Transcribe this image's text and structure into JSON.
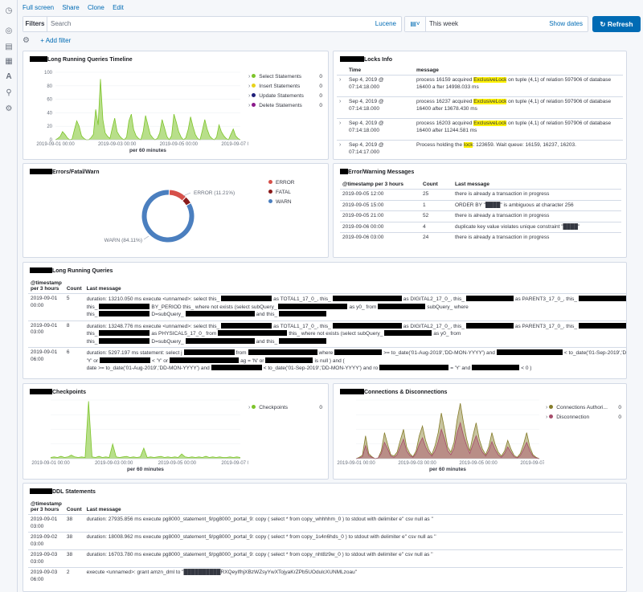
{
  "topmenu": {
    "full_screen": "Full screen",
    "share": "Share",
    "clone": "Clone",
    "edit": "Edit"
  },
  "query": {
    "filters_label": "Filters",
    "search_placeholder": "Search",
    "language": "Lucene"
  },
  "time": {
    "value": "This week",
    "show_dates": "Show dates"
  },
  "refresh_label": "Refresh",
  "add_filter": "+ Add filter",
  "colors": {
    "accent": "#006bb4",
    "green": "#7dc42a",
    "yellow": "#e7d21b",
    "navy": "#1f1f7a",
    "purple": "#8b1a8b",
    "error": "#d6504a",
    "fatal": "#8a1b1b",
    "warn": "#4b7fbf",
    "olive": "#857c2a",
    "rose": "#a64d6b"
  },
  "timeline": {
    "title": "Long Running Queries Timeline",
    "xlabel": "per 60 minutes",
    "yticks": [
      "100",
      "80",
      "60",
      "40",
      "20",
      "0"
    ],
    "xticks": [
      "2019-09-01 00:00",
      "2019-09-03 00:00",
      "2019-09-05 00:00",
      "2019-09-07 00:00"
    ],
    "legend": [
      {
        "label": "Select Statements",
        "value": "0",
        "color": "#7dc42a"
      },
      {
        "label": "Insert Statements",
        "value": "0",
        "color": "#e7d21b"
      },
      {
        "label": "Update Statements",
        "value": "0",
        "color": "#1f1f7a"
      },
      {
        "label": "Delete Statements",
        "value": "0",
        "color": "#8b1a8b"
      }
    ]
  },
  "locks": {
    "title": "Locks Info",
    "headers": [
      "Time",
      "message"
    ],
    "rows": [
      {
        "time": "Sep 4, 2019 @ 07:14:18.000",
        "pre": "process 16159 acquired ",
        "hl": "ExclusiveLock",
        "post": " on tuple (4,1) of relation 597906 of database 16400 a fter 14998.033 ms"
      },
      {
        "time": "Sep 4, 2019 @ 07:14:18.000",
        "pre": "process 16237 acquired ",
        "hl": "ExclusiveLock",
        "post": " on tuple (4,1) of relation 597906 of database 16400 after 13678.430 ms"
      },
      {
        "time": "Sep 4, 2019 @ 07:14:18.000",
        "pre": "process 16203 acquired ",
        "hl": "ExclusiveLock",
        "post": " on tuple (4,1) of relation 597906 of database 16400 after 11244.581 ms"
      },
      {
        "time": "Sep 4, 2019 @ 07:14:17.000",
        "pre": "Process holding the ",
        "hl": "lock",
        "post": ": 123659. Wait queue: 16159, 16237, 16203."
      }
    ]
  },
  "errors_chart": {
    "title": "Errors/Fatal/Warn",
    "error_label": "ERROR (11.21%)",
    "warn_label": "WARN (84.11%)",
    "legend": [
      {
        "label": "ERROR",
        "color": "#d6504a"
      },
      {
        "label": "FATAL",
        "color": "#8a1b1b"
      },
      {
        "label": "WARN",
        "color": "#4b7fbf"
      }
    ]
  },
  "chart_data": [
    {
      "type": "area",
      "title": "Long Running Queries Timeline",
      "xlabel": "per 60 minutes",
      "ylim": [
        0,
        100
      ],
      "x_range": [
        "2019-09-01 00:00",
        "2019-09-07 00:00"
      ],
      "series": [
        {
          "name": "Select Statements",
          "values": [
            0,
            2,
            5,
            12,
            8,
            3,
            0,
            1,
            15,
            28,
            20,
            6,
            2,
            0,
            0,
            3,
            8,
            45,
            22,
            90,
            30,
            10,
            5,
            2,
            18,
            32,
            12,
            6,
            2,
            0,
            4,
            28,
            38,
            15,
            6,
            2,
            0,
            12,
            36,
            22,
            8,
            3,
            0,
            2,
            10,
            30,
            18,
            5,
            0,
            6,
            38,
            26,
            12,
            4,
            0,
            3,
            15,
            34,
            20,
            8,
            2,
            0,
            14,
            30,
            16,
            6,
            2,
            0,
            4,
            22,
            12,
            6,
            2,
            0,
            8,
            16,
            6,
            2,
            0
          ]
        }
      ]
    },
    {
      "type": "pie",
      "title": "Errors/Fatal/Warn",
      "values": [
        {
          "label": "ERROR",
          "percent": 11.21
        },
        {
          "label": "FATAL",
          "percent": 4.68
        },
        {
          "label": "WARN",
          "percent": 84.11
        }
      ]
    },
    {
      "type": "area",
      "title": "Checkpoints",
      "xlabel": "per 60 minutes",
      "x_range": [
        "2019-09-01 00:00",
        "2019-09-07 00:00"
      ],
      "series": [
        {
          "name": "Checkpoints",
          "values": [
            2,
            3,
            2,
            4,
            2,
            3,
            6,
            3,
            2,
            3,
            2,
            98,
            3,
            2,
            4,
            2,
            3,
            2,
            25,
            3,
            2,
            3,
            4,
            2,
            3,
            2,
            3,
            18,
            2,
            3,
            2,
            3,
            4,
            2,
            3,
            2,
            3,
            2,
            8,
            3,
            2,
            3,
            2,
            3,
            2,
            4,
            2,
            3,
            2,
            3,
            2,
            2,
            3,
            2,
            3,
            2
          ]
        }
      ]
    },
    {
      "type": "area",
      "title": "Connections & Disconnections",
      "xlabel": "per 60 minutes",
      "x_range": [
        "2019-09-01 00:00",
        "2019-09-07 00:00"
      ],
      "series": [
        {
          "name": "Connections Authorized",
          "values": [
            0,
            2,
            5,
            35,
            8,
            3,
            0,
            1,
            12,
            40,
            22,
            6,
            4,
            10,
            28,
            45,
            18,
            8,
            3,
            12,
            35,
            50,
            28,
            14,
            6,
            20,
            40,
            70,
            45,
            18,
            10,
            25,
            60,
            85,
            55,
            30,
            12,
            35,
            55,
            30,
            15,
            6,
            18,
            40,
            22,
            10,
            4,
            12,
            28,
            15,
            5,
            2,
            8,
            22,
            40,
            18,
            6,
            2,
            0
          ]
        },
        {
          "name": "Disconnection",
          "values": [
            0,
            1,
            3,
            20,
            5,
            2,
            0,
            1,
            8,
            25,
            15,
            4,
            2,
            6,
            18,
            30,
            12,
            5,
            2,
            8,
            22,
            32,
            18,
            9,
            4,
            12,
            26,
            45,
            30,
            12,
            6,
            16,
            40,
            55,
            35,
            20,
            8,
            22,
            35,
            20,
            10,
            4,
            12,
            26,
            14,
            6,
            2,
            8,
            18,
            10,
            3,
            1,
            5,
            14,
            25,
            12,
            4,
            1,
            0
          ]
        }
      ]
    }
  ],
  "error_msgs": {
    "title": "Error/Warning Messages",
    "headers": [
      "@timestamp per 3 hours",
      "Count",
      "Last message"
    ],
    "rows": [
      {
        "ts": "2019-09-05 12:00",
        "count": "25",
        "msg": "there is already a transaction in progress"
      },
      {
        "ts": "2019-09-05 15:00",
        "count": "1",
        "msg": "ORDER BY \"████\" is ambiguous at character 256"
      },
      {
        "ts": "2019-09-05 21:00",
        "count": "52",
        "msg": "there is already a transaction in progress"
      },
      {
        "ts": "2019-09-06 00:00",
        "count": "4",
        "msg": "duplicate key value violates unique constraint \"████\""
      },
      {
        "ts": "2019-09-06 03:00",
        "count": "24",
        "msg": "there is already a transaction in progress"
      }
    ]
  },
  "lrq": {
    "title": "Long Running Queries",
    "headers": [
      "@timestamp per 3 hours",
      "Count",
      "Last message"
    ],
    "rows": [
      {
        "ts": "2019-09-01 00:00",
        "count": "5",
        "l1": "duration: 13210.050 ms execute <unnamed>: select this_",
        "l1b": "as TOTAL1_17_0_, this_",
        "l1c": "as DIGITAL2_17_0_, this_",
        "l1d": "as PARENT3_17_0_, this_",
        "l1e": "as PERIOD4_17_0_,",
        "l2": "this_",
        "l2b": "BY_PERIOD this_ where not exists (select subQuery_",
        "l2c": "as y0_ from",
        "l2d": "subQuery_ where",
        "l3": "this_",
        "l3b": "D=subQuery_",
        "l3c": "and this_",
        "l3d": ""
      },
      {
        "ts": "2019-09-01 03:00",
        "count": "8",
        "l1": "duration: 13248.776 ms execute <unnamed>: select this_",
        "l1b": "as TOTAL1_17_0_, this_",
        "l1c": "as DIGITAL2_17_0_, this_",
        "l1d": "as PARENT3_17_0_, this_",
        "l1e": "as PERIOD4_17_0_,",
        "l2": "this_",
        "l2b": "as PHYSICAL5_17_0_ from",
        "l2c": "this_ where not exists (select subQuery_",
        "l2d": "as y0_ from",
        "l3": "this_",
        "l3b": "D=subQuery_",
        "l3c": "and this_",
        "l3d": ""
      },
      {
        "ts": "2019-09-01 06:00",
        "count": "6",
        "l1": "duration: 5297.197 ms statement: select j",
        "l1b": "from",
        "l1c": "where",
        "l1d": ">= to_date('01-Aug-2019','DD-MON-YYYY') and",
        "l1e": "< to_date('01-Sep-2019','DD-MON-YYYY') and (",
        "l2": "'Y' or",
        "l2b": "< 'Y' or",
        "l2c": "ag = 'N' or",
        "l2d": "is null ) and (",
        "l3": "date >= to_date('01-Aug-2019','DD-MON-YYYY') and",
        "l3b": "< to_date('01-Sep-2019','DD-MON-YYYY') and ro",
        "l3c": "= 'Y' and",
        "l3d": "< 0 )"
      }
    ]
  },
  "checkpoints": {
    "title": "Checkpoints",
    "xlabel": "per 60 minutes",
    "xticks": [
      "2019-09-01 00:00",
      "2019-09-03 00:00",
      "2019-09-05 00:00",
      "2019-09-07 00:00"
    ],
    "legend": [
      {
        "label": "Checkpoints",
        "value": "0",
        "color": "#7dc42a"
      }
    ]
  },
  "connections": {
    "title": "Connections & Disconnections",
    "xlabel": "per 60 minutes",
    "xticks": [
      "2019-09-01 00:00",
      "2019-09-03 00:00",
      "2019-09-05 00:00",
      "2019-09-07 00:00"
    ],
    "legend": [
      {
        "label": "Connections Authori...",
        "value": "0",
        "color": "#857c2a"
      },
      {
        "label": "Disconnection",
        "value": "0",
        "color": "#a64d6b"
      }
    ]
  },
  "ddl": {
    "title": "DDL Statements",
    "headers": [
      "@timestamp per 3 hours",
      "Count",
      "Last message"
    ],
    "rows": [
      {
        "ts": "2019-09-01 03:00",
        "count": "38",
        "msg": "duration: 27935.856 ms execute pg8000_statement_9/pg8000_portal_9: copy ( select * from copy_whhhhm_0 ) to stdout with delimiter e'' csv null as ''"
      },
      {
        "ts": "2019-09-02 03:00",
        "count": "38",
        "msg": "duration: 18008.962 ms execute pg8000_statement_9/pg8000_portal_9: copy ( select * from copy_1s4n6hds_0 ) to stdout with delimiter e'' csv null as ''"
      },
      {
        "ts": "2019-09-03 03:00",
        "count": "38",
        "msg": "duration: 16703.780 ms execute pg8000_statement_9/pg8000_portal_9: copy ( select * from copy_nht8z9w_0 ) to stdout with delimiter e'' csv null as ''"
      },
      {
        "ts": "2019-09-03 06:00",
        "count": "2",
        "msg": "execute <unnamed>: grant amzn_dml to \"██████████RXQeyIfhjXBzWZsyYwXTojyaKrZPb5UOdulcXUNMLzoau\""
      }
    ]
  }
}
